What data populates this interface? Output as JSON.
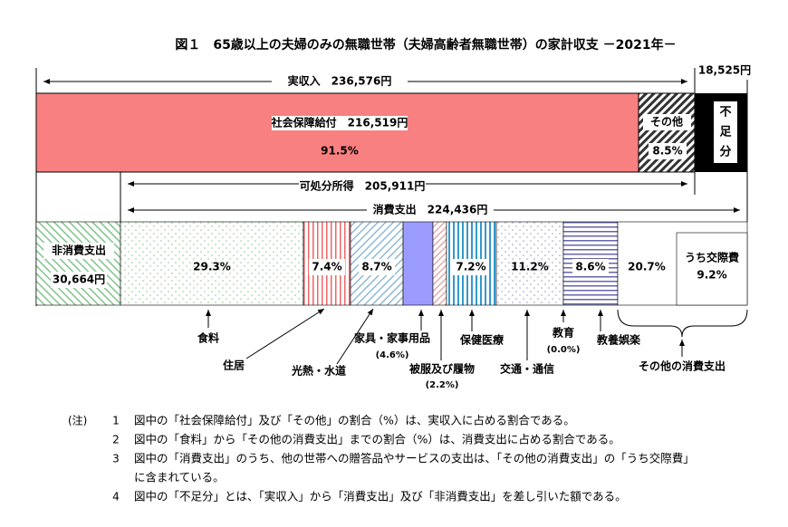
{
  "title": "図１　65歳以上の夫婦のみの無職世帯（夫婦高齢者無職世帯）の家計収支 －2021年－",
  "income": "実収入　236,576円",
  "shortfall_amount": "18,525円",
  "social_security": "社会保障給付　216,519円",
  "social_security_pct": "91.5%",
  "other_income": "その他",
  "other_income_pct": "8.5%",
  "shortfall": "不足分",
  "disposable": "可処分所得　205,911円",
  "consumption": "消費支出　224,436円",
  "non_consumption": "非消費支出",
  "non_consumption_amount": "30,664円",
  "segment_pcts": [
    "29.3%",
    "7.4%",
    "8.7%",
    "7.2%",
    "11.2%",
    "8.6%",
    "20.7%"
  ],
  "social_expense": "うち交際費",
  "social_expense_pct": "9.2%",
  "labels": {
    "food": "食料",
    "housing": "住居",
    "utilities": "光熱・水道",
    "furniture": "家具・家事用品",
    "furniture_pct": "(4.6%)",
    "clothing": "被服及び履物",
    "clothing_pct": "(2.2%)",
    "medical": "保健医療",
    "transport": "交通・通信",
    "education": "教育",
    "education_pct": "(0.0%)",
    "recreation": "教養娯楽",
    "other": "その他の消費支出"
  },
  "notes_head": "(注)",
  "notes": [
    {
      "num": "1",
      "text": "図中の「社会保障給付」及び「その他」の割合（%）は、実収入に占める割合である。"
    },
    {
      "num": "2",
      "text": "図中の「食料」から「その他の消費支出」までの割合（%）は、消費支出に占める割合である。"
    },
    {
      "num": "3",
      "text": "図中の「消費支出」のうち、他の世帯への贈答品やサービスの支出は、「その他の消費支出」の「うち交際費」"
    },
    {
      "num": "",
      "text": "に含まれている。"
    },
    {
      "num": "4",
      "text": "図中の「不足分」とは、「実収入」から「消費支出」及び「非消費支出」を差し引いた額である。"
    }
  ]
}
